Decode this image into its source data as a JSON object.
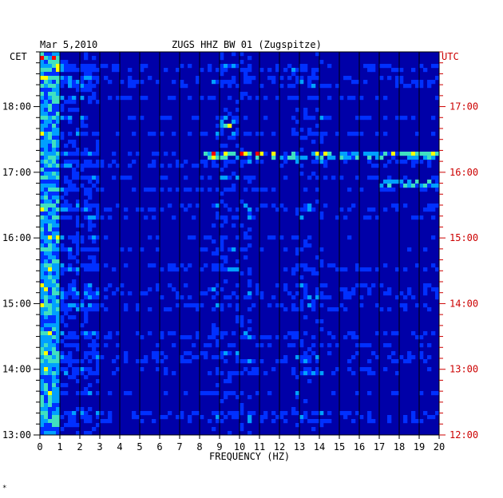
{
  "header": {
    "date": "Mar 5,2010",
    "station": "ZUGS HHZ BW 01 (Zugspitze)",
    "left_tz": "CET",
    "right_tz": "UTC"
  },
  "footnote": "*",
  "colors": {
    "background": "#0000a8",
    "left_text": "#000000",
    "right_text": "#cc0000",
    "colormap": [
      "#0000a8",
      "#0030ff",
      "#00a0ff",
      "#40e0c0",
      "#ffff00",
      "#ff0000"
    ]
  },
  "chart_data": {
    "type": "heatmap",
    "title": "ZUGS HHZ BW 01 (Zugspitze)",
    "subtitle": "Mar 5,2010",
    "xlabel": "FREQUENCY (HZ)",
    "ylabel_left": "CET",
    "ylabel_right": "UTC",
    "xlim": [
      0,
      20
    ],
    "x_ticks": [
      "0",
      "1",
      "2",
      "3",
      "4",
      "5",
      "6",
      "7",
      "8",
      "9",
      "10",
      "11",
      "12",
      "13",
      "14",
      "15",
      "16",
      "17",
      "18",
      "19",
      "20"
    ],
    "y_range_cet": [
      "13:00",
      "18:50"
    ],
    "y_ticks_left": [
      "18:00",
      "17:00",
      "16:00",
      "15:00",
      "14:00",
      "13:00"
    ],
    "y_ticks_right": [
      "17:00",
      "16:00",
      "15:00",
      "14:00",
      "13:00",
      "12:00"
    ],
    "grid": true,
    "notable_features": [
      {
        "time_cet": "17:15",
        "freq_hz": [
          8,
          20
        ],
        "intensity": "high"
      },
      {
        "time_cet": "16:50",
        "freq_hz": [
          17,
          20
        ],
        "intensity": "high"
      },
      {
        "time_cet": "17:45",
        "freq_hz": [
          9,
          10
        ],
        "intensity": "medium"
      },
      {
        "time_cet": "18:45",
        "freq_hz": [
          0,
          1
        ],
        "intensity": "high"
      }
    ]
  }
}
